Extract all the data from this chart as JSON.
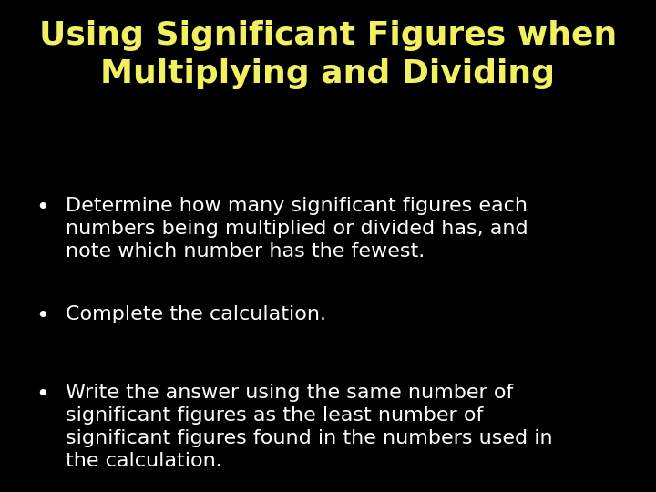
{
  "background_color": "#000000",
  "title_line1": "Using Significant Figures when",
  "title_line2": "Multiplying and Dividing",
  "title_color": "#f0f060",
  "title_fontsize": 26,
  "bullet_color": "#ffffff",
  "bullet_fontsize": 16,
  "bullet_dot_fontsize": 18,
  "bullets": [
    "Determine how many significant figures each\nnumbers being multiplied or divided has, and\nnote which number has the fewest.",
    "Complete the calculation.",
    "Write the answer using the same number of\nsignificant figures as the least number of\nsignificant figures found in the numbers used in\nthe calculation."
  ],
  "figwidth": 7.2,
  "figheight": 5.4,
  "dpi": 100
}
